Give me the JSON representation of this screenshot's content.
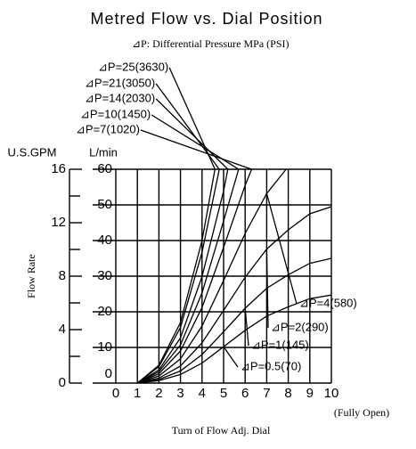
{
  "chart_data": {
    "type": "line",
    "title": "Metred Flow vs. Dial Position",
    "note": "⊿P: Differential Pressure MPa (PSI)",
    "x_label": "Turn of Flow Adj. Dial",
    "x_end_note": "(Fully Open)",
    "y_label": "Flow Rate",
    "y_unit": "L/min",
    "y2_unit": "U.S.GPM",
    "xlim": [
      0,
      10
    ],
    "xticks": [
      0,
      1,
      2,
      3,
      4,
      5,
      6,
      7,
      8,
      9,
      10
    ],
    "ylim": [
      0,
      60
    ],
    "yticks": [
      0,
      10,
      20,
      30,
      40,
      50,
      60
    ],
    "y2lim": [
      0,
      16
    ],
    "y2ticks": [
      0,
      4,
      8,
      12,
      16
    ],
    "y2minor": [
      2,
      6,
      10,
      14
    ],
    "grid": true,
    "series": [
      {
        "name": "⊿P=25(3630)",
        "color": "#000000",
        "x": [
          1,
          2,
          3,
          4,
          4.6
        ],
        "values": [
          0,
          5,
          17,
          40,
          60
        ]
      },
      {
        "name": "⊿P=21(3050)",
        "color": "#000000",
        "x": [
          1,
          2,
          3,
          4,
          4.8
        ],
        "values": [
          0,
          4.6,
          15.6,
          36.7,
          60
        ]
      },
      {
        "name": "⊿P=14(2030)",
        "color": "#000000",
        "x": [
          1,
          2,
          3,
          4,
          5,
          5.2
        ],
        "values": [
          0,
          3.7,
          12.7,
          29.9,
          53.9,
          60
        ]
      },
      {
        "name": "⊿P=10(1450)",
        "color": "#000000",
        "x": [
          1,
          2,
          3,
          4,
          5,
          5.7
        ],
        "values": [
          0,
          3.2,
          10.7,
          25.3,
          45.5,
          60
        ]
      },
      {
        "name": "⊿P=7(1020)",
        "color": "#000000",
        "x": [
          1,
          2,
          3,
          4,
          5,
          6,
          6.3
        ],
        "values": [
          0,
          2.6,
          9,
          21.2,
          38.1,
          55.5,
          60
        ]
      },
      {
        "name": "⊿P=4(580)",
        "color": "#000000",
        "x": [
          1,
          2,
          3,
          4,
          5,
          6,
          7,
          7.9
        ],
        "values": [
          0,
          2,
          6.8,
          16,
          28.8,
          42,
          53.2,
          60
        ]
      },
      {
        "name": "⊿P=2(290)",
        "color": "#000000",
        "x": [
          1,
          2,
          3,
          4,
          5,
          6,
          7,
          8,
          9,
          10
        ],
        "values": [
          0,
          1.4,
          4.8,
          11.3,
          20.4,
          29.7,
          37.6,
          43,
          47.5,
          49.5
        ]
      },
      {
        "name": "⊿P=1(145)",
        "color": "#000000",
        "x": [
          1,
          2,
          3,
          4,
          5,
          6,
          7,
          8,
          9,
          10
        ],
        "values": [
          0,
          1,
          3.4,
          8,
          14.4,
          21,
          26.6,
          30.4,
          33.6,
          35
        ]
      },
      {
        "name": "⊿P=0.5(70)",
        "color": "#000000",
        "x": [
          1,
          2,
          3,
          4,
          5,
          6,
          7,
          8,
          9,
          10
        ],
        "values": [
          0,
          0.7,
          2.4,
          5.6,
          10.2,
          14.8,
          18.8,
          21.4,
          23.7,
          24.7
        ]
      }
    ]
  }
}
